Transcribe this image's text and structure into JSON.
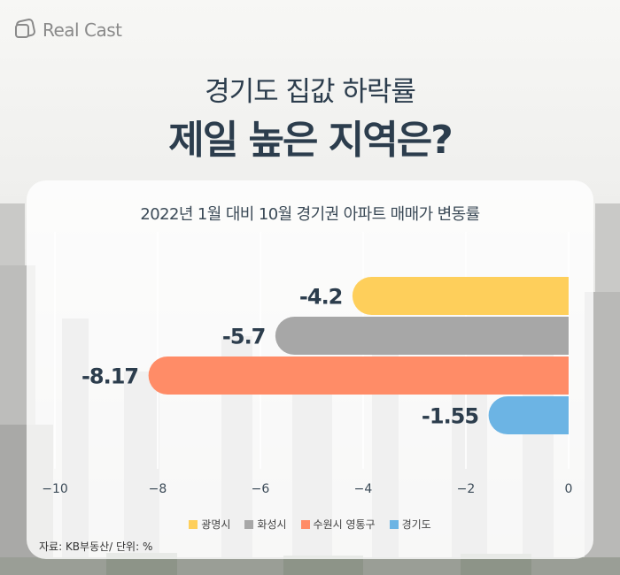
{
  "brand": {
    "name": "Real Cast"
  },
  "header": {
    "line1": "경기도 집값 하락률",
    "line2": "제일 높은 지역은?"
  },
  "source": "자료: KB부동산/ 단위: %",
  "chart_data": {
    "type": "bar",
    "orientation": "horizontal",
    "title": "2022년 1월 대비 10월 경기권 아파트 매매가 변동률",
    "xlabel": "",
    "ylabel": "",
    "xlim": [
      -10,
      0
    ],
    "x_ticks": [
      -10,
      -8,
      -6,
      -4,
      -2,
      0
    ],
    "x_tick_labels": [
      "−10",
      "−8",
      "−6",
      "−4",
      "−2",
      "0"
    ],
    "categories": [
      "광명시",
      "화성시",
      "수원시 영통구",
      "경기도"
    ],
    "values": [
      -4.2,
      -5.7,
      -8.17,
      -1.55
    ],
    "value_labels": [
      "-4.2",
      "-5.7",
      "-8.17",
      "-1.55"
    ],
    "colors": [
      "#fecf5b",
      "#a7a7a7",
      "#ff8c67",
      "#6cb4e4"
    ],
    "grid": "vertical",
    "legend": "bottom-center"
  }
}
